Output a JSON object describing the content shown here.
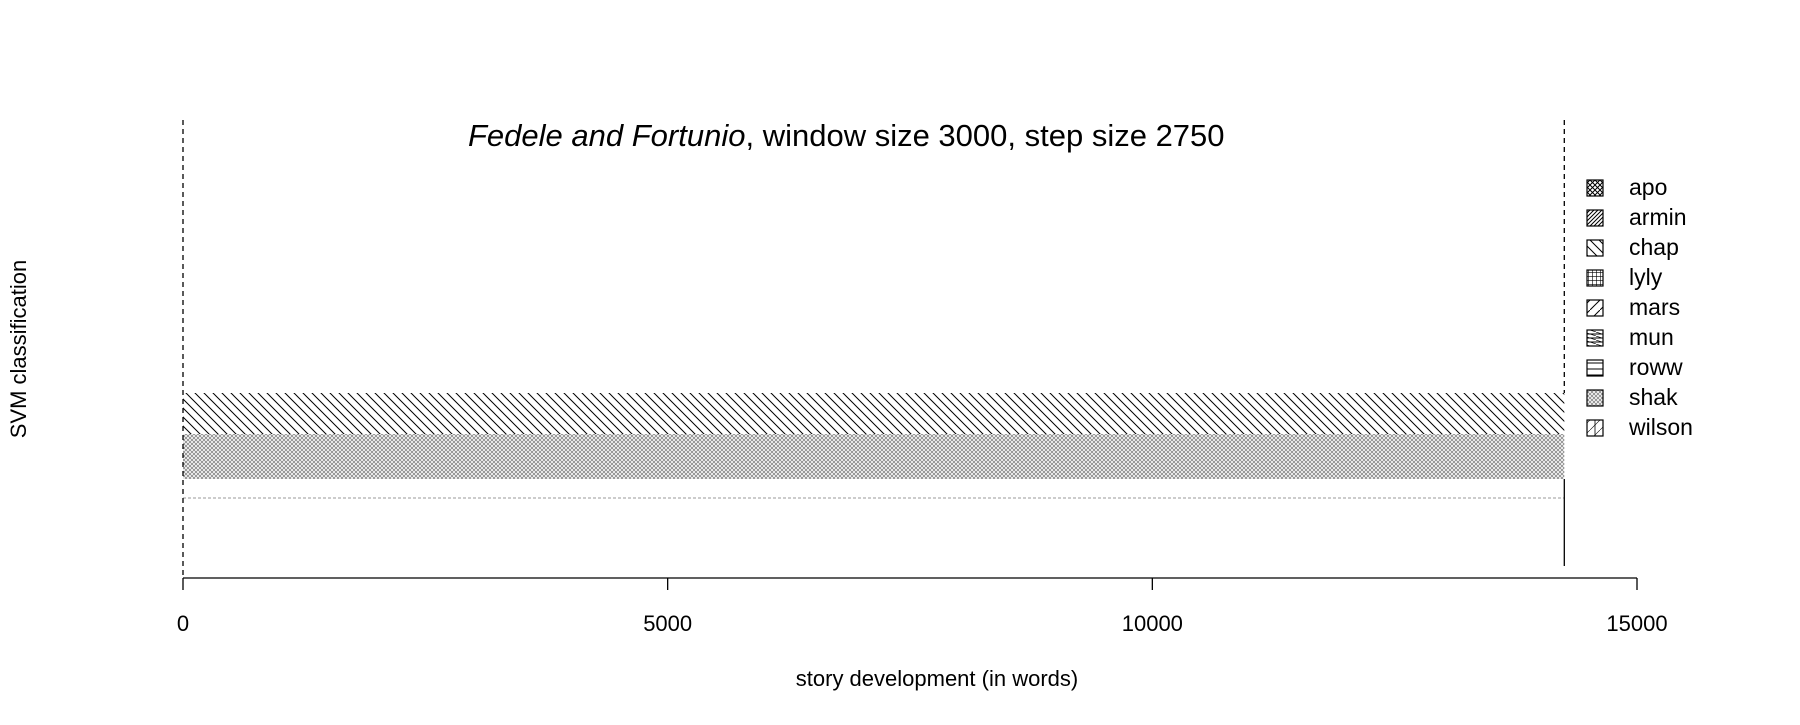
{
  "chart_data": {
    "type": "area",
    "title": {
      "italic": "Fedele and Fortunio",
      "rest": ", window size 3000, step size 2750"
    },
    "xlabel": "story development (in words)",
    "ylabel": "SVM classification",
    "xlim": [
      0,
      15000
    ],
    "x_ticks": [
      "0",
      "5000",
      "10000",
      "15000"
    ],
    "x_tick_values": [
      0,
      5000,
      10000,
      15000
    ],
    "text_end": 14250,
    "grid": false,
    "legend_position": "right",
    "legend": [
      {
        "label": "apo",
        "pattern": "crosshatch"
      },
      {
        "label": "armin",
        "pattern": "diagonal-up"
      },
      {
        "label": "chap",
        "pattern": "diagonal-down"
      },
      {
        "label": "lyly",
        "pattern": "grid"
      },
      {
        "label": "mars",
        "pattern": "diagonal-up-sparse"
      },
      {
        "label": "mun",
        "pattern": "horizontal-diagonal"
      },
      {
        "label": "roww",
        "pattern": "horizontal"
      },
      {
        "label": "shak",
        "pattern": "dense-crosshatch"
      },
      {
        "label": "wilson",
        "pattern": "vertical-diagonal"
      }
    ],
    "bands": [
      {
        "class": "chap",
        "pattern": "diagonal-down"
      },
      {
        "class": "shak",
        "pattern": "dense-crosshatch"
      }
    ]
  }
}
